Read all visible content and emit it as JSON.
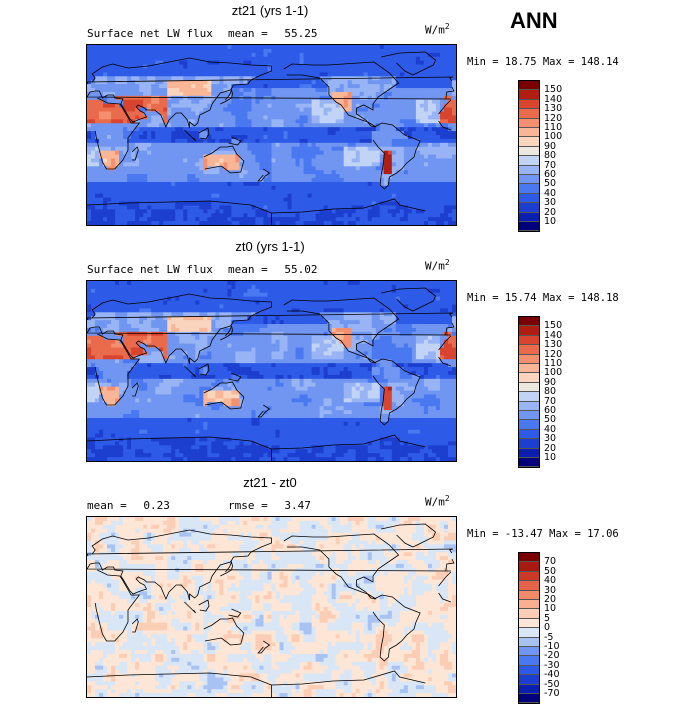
{
  "season": "ANN",
  "panels": [
    {
      "title": "zt21 (yrs 1-1)",
      "field": "Surface net LW flux",
      "stats": [
        {
          "label": "mean =",
          "value": "55.25"
        }
      ],
      "unit": "W/m",
      "unit_exp": "2",
      "minmax": "Min =  18.75 Max = 148.14",
      "chart_data": {
        "type": "heatmap",
        "title": "zt21 (yrs 1-1)",
        "subtitle": "Surface net LW flux",
        "mean": 55.25,
        "min": 18.75,
        "max": 148.14,
        "units": "W/m2",
        "colorbar_levels": [
          10,
          20,
          30,
          40,
          50,
          60,
          70,
          80,
          90,
          100,
          110,
          120,
          130,
          140,
          150
        ],
        "colors": [
          "#00007a",
          "#0a1fb0",
          "#1c3fd0",
          "#2e5ae8",
          "#4a78f0",
          "#7096f2",
          "#98b4f4",
          "#c2d4f6",
          "#ece8e0",
          "#fad4bc",
          "#f8b696",
          "#f49070",
          "#ea6a4c",
          "#d9442e",
          "#b01e12",
          "#7a0000"
        ]
      }
    },
    {
      "title": "zt0 (yrs 1-1)",
      "field": "Surface net LW flux",
      "stats": [
        {
          "label": "mean =",
          "value": "55.02"
        }
      ],
      "unit": "W/m",
      "unit_exp": "2",
      "minmax": "Min =  15.74 Max = 148.18",
      "chart_data": {
        "type": "heatmap",
        "title": "zt0 (yrs 1-1)",
        "subtitle": "Surface net LW flux",
        "mean": 55.02,
        "min": 15.74,
        "max": 148.18,
        "units": "W/m2",
        "colorbar_levels": [
          10,
          20,
          30,
          40,
          50,
          60,
          70,
          80,
          90,
          100,
          110,
          120,
          130,
          140,
          150
        ],
        "colors": [
          "#00007a",
          "#0a1fb0",
          "#1c3fd0",
          "#2e5ae8",
          "#4a78f0",
          "#7096f2",
          "#98b4f4",
          "#c2d4f6",
          "#ece8e0",
          "#fad4bc",
          "#f8b696",
          "#f49070",
          "#ea6a4c",
          "#d9442e",
          "#b01e12",
          "#7a0000"
        ]
      }
    },
    {
      "title": "zt21 - zt0",
      "field": "",
      "stats": [
        {
          "label": "mean =",
          "value": "0.23"
        },
        {
          "label": "rmse =",
          "value": "3.47"
        }
      ],
      "unit": "W/m",
      "unit_exp": "2",
      "minmax": "Min = -13.47 Max =  17.06",
      "chart_data": {
        "type": "heatmap",
        "title": "zt21 - zt0",
        "mean": 0.23,
        "rmse": 3.47,
        "min": -13.47,
        "max": 17.06,
        "units": "W/m2",
        "colorbar_levels": [
          -70,
          -50,
          -40,
          -30,
          -20,
          -10,
          -5,
          0,
          5,
          10,
          20,
          30,
          40,
          50,
          70
        ],
        "colors": [
          "#00007a",
          "#0a1fb0",
          "#1c3fd0",
          "#2e5ae8",
          "#4a78f0",
          "#7096f2",
          "#a8c2f4",
          "#d8e6f6",
          "#fde6d6",
          "#fbcdb4",
          "#f8b090",
          "#f08a68",
          "#e4644a",
          "#cc3a26",
          "#a81a10",
          "#7a0000"
        ]
      }
    }
  ]
}
